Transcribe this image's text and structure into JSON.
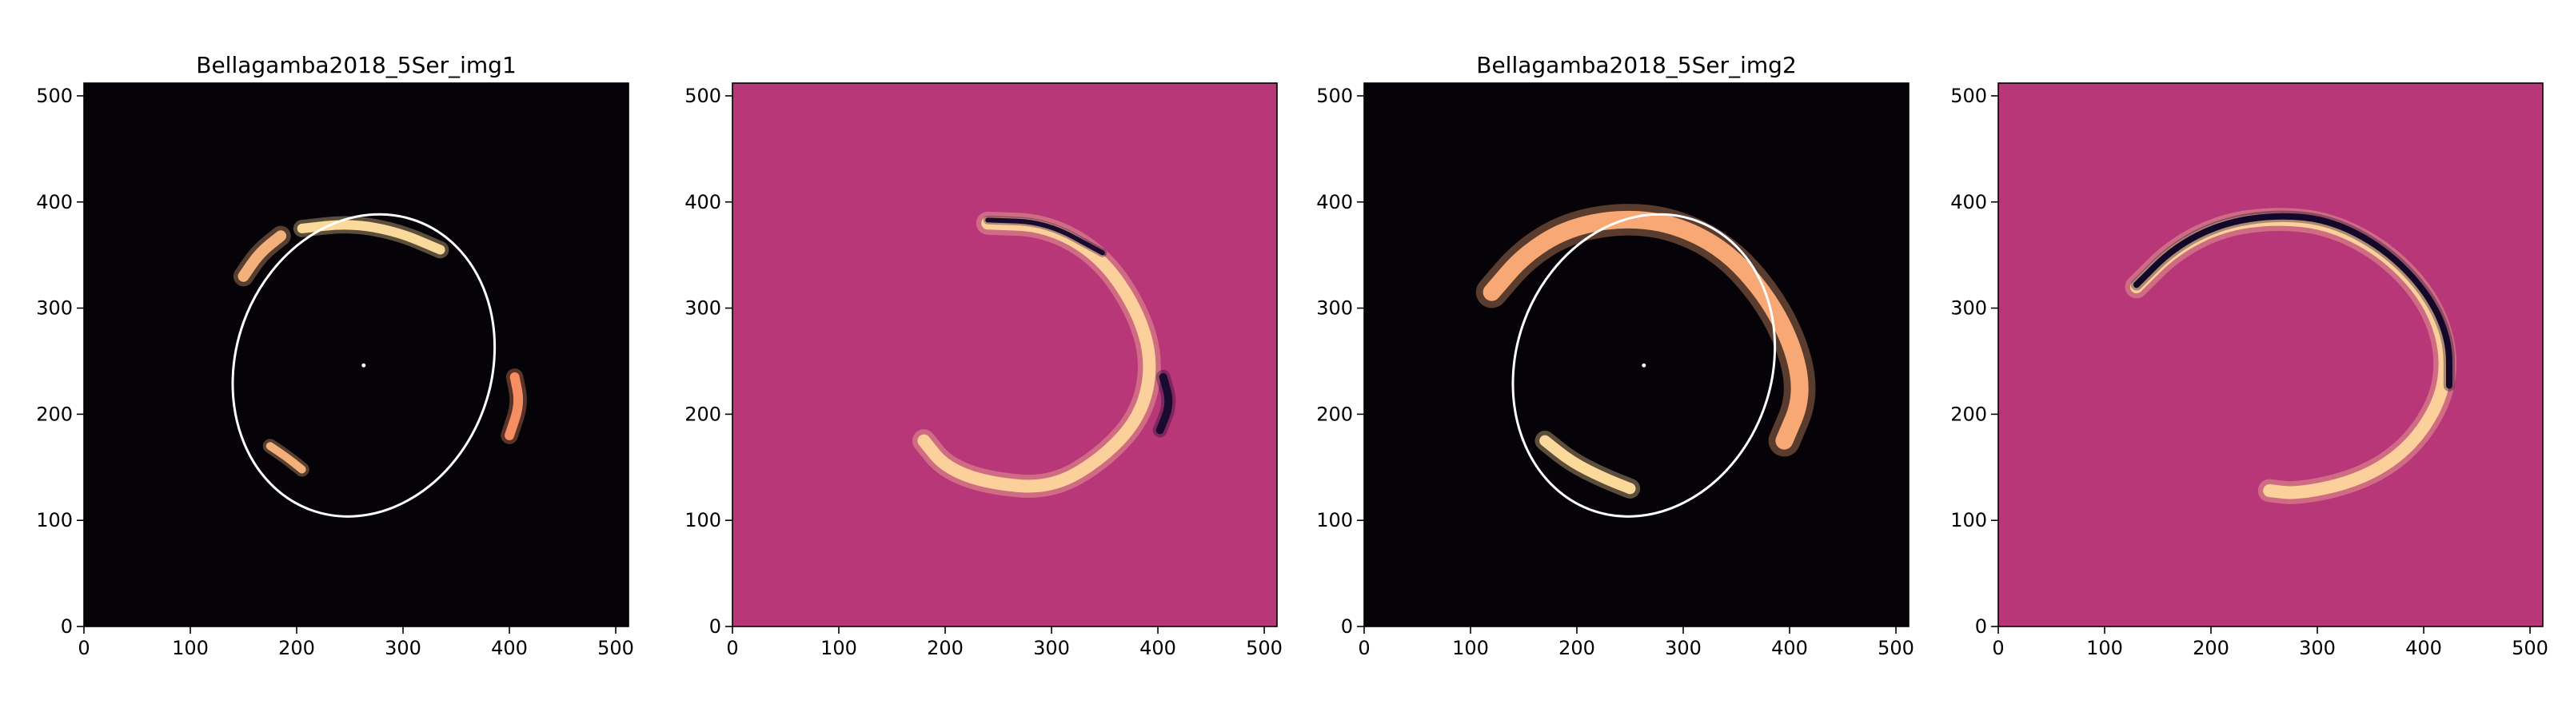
{
  "chart_data": [
    {
      "type": "heatmap",
      "title": "Bellagamba2018_5Ser_img1",
      "xlabel": "",
      "ylabel": "",
      "xlim": [
        0,
        512
      ],
      "ylim": [
        0,
        512
      ],
      "xticks": [
        0,
        100,
        200,
        300,
        400,
        500
      ],
      "yticks": [
        0,
        100,
        200,
        300,
        400,
        500
      ],
      "background": "#050308",
      "ellipse": {
        "center": [
          263,
          246
        ],
        "rx": 120,
        "ry": 145,
        "angle_deg": 20,
        "color": "#ffffff"
      },
      "center_dot": [
        263,
        246
      ],
      "arcs": [
        {
          "points": [
            [
              150,
              330
            ],
            [
              165,
              352
            ],
            [
              185,
              368
            ]
          ],
          "color": "#f3b07a",
          "width": 14
        },
        {
          "points": [
            [
              205,
              375
            ],
            [
              250,
              380
            ],
            [
              295,
              372
            ],
            [
              335,
              355
            ]
          ],
          "color": "#fbd99b",
          "width": 12
        },
        {
          "points": [
            [
              405,
              235
            ],
            [
              410,
              210
            ],
            [
              400,
              180
            ]
          ],
          "color": "#f58e62",
          "width": 12
        },
        {
          "points": [
            [
              175,
              170
            ],
            [
              190,
              160
            ],
            [
              205,
              148
            ]
          ],
          "color": "#f3b07a",
          "width": 10
        }
      ]
    },
    {
      "type": "heatmap",
      "title": "",
      "xlabel": "",
      "ylabel": "",
      "xlim": [
        0,
        512
      ],
      "ylim": [
        0,
        512
      ],
      "xticks": [
        0,
        100,
        200,
        300,
        400,
        500
      ],
      "yticks": [
        0,
        100,
        200,
        300,
        400,
        500
      ],
      "background": "#b73779",
      "arcs": [
        {
          "points": [
            [
              240,
              380
            ],
            [
              295,
              378
            ],
            [
              345,
              350
            ],
            [
              380,
              300
            ],
            [
              395,
              250
            ],
            [
              385,
              200
            ],
            [
              350,
              160
            ],
            [
              300,
              130
            ],
            [
              240,
              135
            ],
            [
              200,
              150
            ],
            [
              180,
              175
            ]
          ],
          "color": "#fcd09a",
          "width": 16
        },
        {
          "points": [
            [
              240,
              383
            ],
            [
              295,
              381
            ],
            [
              348,
              352
            ]
          ],
          "color": "#1a0a30",
          "width": 6
        },
        {
          "points": [
            [
              405,
              235
            ],
            [
              412,
              210
            ],
            [
              402,
              185
            ]
          ],
          "color": "#1a0a30",
          "width": 10
        }
      ]
    },
    {
      "type": "heatmap",
      "title": "Bellagamba2018_5Ser_img2",
      "xlabel": "",
      "ylabel": "",
      "xlim": [
        0,
        512
      ],
      "ylim": [
        0,
        512
      ],
      "xticks": [
        0,
        100,
        200,
        300,
        400,
        500
      ],
      "yticks": [
        0,
        100,
        200,
        300,
        400,
        500
      ],
      "background": "#050308",
      "ellipse": {
        "center": [
          263,
          246
        ],
        "rx": 120,
        "ry": 145,
        "angle_deg": 20,
        "color": "#ffffff"
      },
      "center_dot": [
        263,
        246
      ],
      "arcs": [
        {
          "points": [
            [
              120,
              315
            ],
            [
              150,
              350
            ],
            [
              190,
              375
            ],
            [
              240,
              385
            ],
            [
              290,
              380
            ],
            [
              340,
              355
            ],
            [
              380,
              310
            ],
            [
              405,
              260
            ],
            [
              412,
              215
            ],
            [
              395,
              175
            ]
          ],
          "color": "#f7a874",
          "width": 22
        },
        {
          "points": [
            [
              170,
              175
            ],
            [
              195,
              155
            ],
            [
              225,
              140
            ],
            [
              250,
              130
            ]
          ],
          "color": "#fbd99b",
          "width": 14
        }
      ]
    },
    {
      "type": "heatmap",
      "title": "",
      "xlabel": "",
      "ylabel": "",
      "xlim": [
        0,
        512
      ],
      "ylim": [
        0,
        512
      ],
      "xticks": [
        0,
        100,
        200,
        300,
        400,
        500
      ],
      "yticks": [
        0,
        100,
        200,
        300,
        400,
        500
      ],
      "background": "#b73779",
      "arcs": [
        {
          "points": [
            [
              130,
              320
            ],
            [
              165,
              355
            ],
            [
              210,
              378
            ],
            [
              260,
              385
            ],
            [
              310,
              380
            ],
            [
              360,
              355
            ],
            [
              400,
              315
            ],
            [
              420,
              270
            ],
            [
              420,
              225
            ],
            [
              400,
              185
            ],
            [
              370,
              155
            ],
            [
              330,
              135
            ],
            [
              280,
              125
            ],
            [
              255,
              128
            ]
          ],
          "color": "#fcd09a",
          "width": 16
        },
        {
          "points": [
            [
              130,
              322
            ],
            [
              165,
              357
            ],
            [
              210,
              380
            ],
            [
              262,
              388
            ],
            [
              312,
              383
            ],
            [
              362,
              357
            ],
            [
              402,
              317
            ],
            [
              424,
              272
            ],
            [
              424,
              227
            ]
          ],
          "color": "#14082a",
          "width": 8
        }
      ]
    }
  ]
}
